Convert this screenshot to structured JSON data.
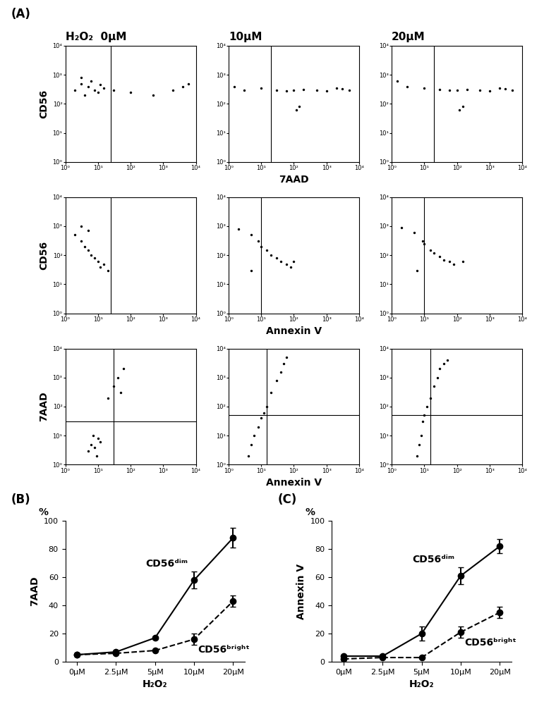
{
  "chart_data": [
    {
      "type": "scatter",
      "panel": "(A)",
      "title": "H₂O₂  0μM",
      "ylabel": "CD56",
      "log": true,
      "color": "#000000",
      "marker": "o",
      "x": [
        2,
        3,
        4,
        5,
        6,
        8,
        10,
        12,
        15,
        3,
        30,
        100,
        500,
        2000,
        4000,
        6000
      ],
      "y": [
        300,
        500,
        200,
        400,
        600,
        300,
        250,
        450,
        350,
        800,
        300,
        250,
        200,
        300,
        400,
        500
      ],
      "gate_x": 25,
      "xlim": [
        1,
        10000
      ],
      "ylim": [
        1,
        10000
      ],
      "xticks": [
        {
          "value": 1,
          "label": "10⁰"
        },
        {
          "value": 10,
          "label": "10¹"
        },
        {
          "value": 100,
          "label": "10²"
        },
        {
          "value": 1000,
          "label": "10³"
        },
        {
          "value": 10000,
          "label": "10⁴"
        }
      ],
      "yticks": [
        {
          "value": 1,
          "label": "10⁰"
        },
        {
          "value": 10,
          "label": "10¹"
        },
        {
          "value": 100,
          "label": "10²"
        },
        {
          "value": 1000,
          "label": "10³"
        },
        {
          "value": 10000,
          "label": "10⁴"
        }
      ]
    },
    {
      "type": "scatter",
      "title": "10μM",
      "xlabel": "7AAD",
      "log": true,
      "color": "#000000",
      "marker": "o",
      "x": [
        1.5,
        3,
        10,
        30,
        60,
        100,
        200,
        500,
        1000,
        2000,
        3000,
        5000,
        120,
        150
      ],
      "y": [
        400,
        300,
        350,
        300,
        280,
        300,
        320,
        300,
        280,
        350,
        330,
        300,
        60,
        80
      ],
      "gate_x": 20,
      "xlim": [
        1,
        10000
      ],
      "ylim": [
        1,
        10000
      ],
      "xticks": [
        {
          "value": 1,
          "label": "10⁰"
        },
        {
          "value": 10,
          "label": "10¹"
        },
        {
          "value": 100,
          "label": "10²"
        },
        {
          "value": 1000,
          "label": "10³"
        },
        {
          "value": 10000,
          "label": "10⁴"
        }
      ],
      "yticks": [
        {
          "value": 1,
          "label": "10⁰"
        },
        {
          "value": 10,
          "label": "10¹"
        },
        {
          "value": 100,
          "label": "10²"
        },
        {
          "value": 1000,
          "label": "10³"
        },
        {
          "value": 10000,
          "label": "10⁴"
        }
      ]
    },
    {
      "type": "scatter",
      "title": "20μM",
      "log": true,
      "color": "#000000",
      "marker": "o",
      "x": [
        1.5,
        3,
        10,
        30,
        60,
        100,
        200,
        500,
        1000,
        2000,
        3000,
        5000,
        120,
        150
      ],
      "y": [
        600,
        400,
        350,
        320,
        300,
        300,
        320,
        300,
        280,
        350,
        330,
        300,
        60,
        80
      ],
      "gate_x": 20,
      "xlim": [
        1,
        10000
      ],
      "ylim": [
        1,
        10000
      ],
      "xticks": [
        {
          "value": 1,
          "label": "10⁰"
        },
        {
          "value": 10,
          "label": "10¹"
        },
        {
          "value": 100,
          "label": "10²"
        },
        {
          "value": 1000,
          "label": "10³"
        },
        {
          "value": 10000,
          "label": "10⁴"
        }
      ],
      "yticks": [
        {
          "value": 1,
          "label": "10⁰"
        },
        {
          "value": 10,
          "label": "10¹"
        },
        {
          "value": 100,
          "label": "10²"
        },
        {
          "value": 1000,
          "label": "10³"
        },
        {
          "value": 10000,
          "label": "10⁴"
        }
      ]
    },
    {
      "type": "scatter",
      "ylabel": "CD56",
      "log": true,
      "color": "#000000",
      "marker": "o",
      "x": [
        2,
        3,
        4,
        5,
        6,
        8,
        10,
        12,
        15,
        20,
        3,
        5
      ],
      "y": [
        500,
        300,
        200,
        150,
        100,
        80,
        60,
        40,
        50,
        30,
        1000,
        700
      ],
      "gate_x": 25,
      "xlim": [
        1,
        10000
      ],
      "ylim": [
        1,
        10000
      ],
      "xticks": [
        {
          "value": 1,
          "label": "10⁰"
        },
        {
          "value": 10,
          "label": "10¹"
        },
        {
          "value": 100,
          "label": "10²"
        },
        {
          "value": 1000,
          "label": "10³"
        },
        {
          "value": 10000,
          "label": "10⁴"
        }
      ],
      "yticks": [
        {
          "value": 1,
          "label": "10⁰"
        },
        {
          "value": 10,
          "label": "10¹"
        },
        {
          "value": 100,
          "label": "10²"
        },
        {
          "value": 1000,
          "label": "10³"
        },
        {
          "value": 10000,
          "label": "10⁴"
        }
      ]
    },
    {
      "type": "scatter",
      "xlabel": "Annexin V",
      "log": true,
      "color": "#000000",
      "marker": "o",
      "x": [
        2,
        5,
        10,
        15,
        20,
        30,
        40,
        60,
        80,
        100,
        5,
        8
      ],
      "y": [
        800,
        500,
        200,
        150,
        100,
        80,
        60,
        50,
        40,
        60,
        30,
        300
      ],
      "gate_x": 10,
      "xlim": [
        1,
        10000
      ],
      "ylim": [
        1,
        10000
      ],
      "xticks": [
        {
          "value": 1,
          "label": "10⁰"
        },
        {
          "value": 10,
          "label": "10¹"
        },
        {
          "value": 100,
          "label": "10²"
        },
        {
          "value": 1000,
          "label": "10³"
        },
        {
          "value": 10000,
          "label": "10⁴"
        }
      ],
      "yticks": [
        {
          "value": 1,
          "label": "10⁰"
        },
        {
          "value": 10,
          "label": "10¹"
        },
        {
          "value": 100,
          "label": "10²"
        },
        {
          "value": 1000,
          "label": "10³"
        },
        {
          "value": 10000,
          "label": "10⁴"
        }
      ]
    },
    {
      "type": "scatter",
      "log": true,
      "color": "#000000",
      "marker": "o",
      "x": [
        2,
        5,
        10,
        15,
        20,
        30,
        40,
        60,
        80,
        150,
        6,
        9
      ],
      "y": [
        900,
        600,
        250,
        150,
        120,
        90,
        70,
        60,
        50,
        60,
        30,
        300
      ],
      "gate_x": 10,
      "xlim": [
        1,
        10000
      ],
      "ylim": [
        1,
        10000
      ],
      "xticks": [
        {
          "value": 1,
          "label": "10⁰"
        },
        {
          "value": 10,
          "label": "10¹"
        },
        {
          "value": 100,
          "label": "10²"
        },
        {
          "value": 1000,
          "label": "10³"
        },
        {
          "value": 10000,
          "label": "10⁴"
        }
      ],
      "yticks": [
        {
          "value": 1,
          "label": "10⁰"
        },
        {
          "value": 10,
          "label": "10¹"
        },
        {
          "value": 100,
          "label": "10²"
        },
        {
          "value": 1000,
          "label": "10³"
        },
        {
          "value": 10000,
          "label": "10⁴"
        }
      ]
    },
    {
      "type": "scatter",
      "ylabel": "7AAD",
      "log": true,
      "color": "#000000",
      "marker": "o",
      "x": [
        5,
        6,
        8,
        10,
        7,
        9,
        12,
        20,
        30,
        40,
        60,
        50
      ],
      "y": [
        3,
        5,
        4,
        8,
        10,
        2,
        6,
        200,
        500,
        1000,
        2000,
        300
      ],
      "gate_x": 30,
      "gate_y": 30,
      "xlim": [
        1,
        10000
      ],
      "ylim": [
        1,
        10000
      ],
      "xticks": [
        {
          "value": 1,
          "label": "10⁰"
        },
        {
          "value": 10,
          "label": "10¹"
        },
        {
          "value": 100,
          "label": "10²"
        },
        {
          "value": 1000,
          "label": "10³"
        },
        {
          "value": 10000,
          "label": "10⁴"
        }
      ],
      "yticks": [
        {
          "value": 1,
          "label": "10⁰"
        },
        {
          "value": 10,
          "label": "10¹"
        },
        {
          "value": 100,
          "label": "10²"
        },
        {
          "value": 1000,
          "label": "10³"
        },
        {
          "value": 10000,
          "label": "10⁴"
        }
      ]
    },
    {
      "type": "scatter",
      "xlabel": "Annexin V",
      "log": true,
      "color": "#000000",
      "marker": "o",
      "x": [
        4,
        5,
        6,
        8,
        10,
        12,
        15,
        20,
        30,
        40,
        50,
        60
      ],
      "y": [
        2,
        5,
        10,
        20,
        40,
        60,
        100,
        300,
        800,
        1500,
        3000,
        5000
      ],
      "gate_x": 15,
      "gate_y": 50,
      "xlim": [
        1,
        10000
      ],
      "ylim": [
        1,
        10000
      ],
      "xticks": [
        {
          "value": 1,
          "label": "10⁰"
        },
        {
          "value": 10,
          "label": "10¹"
        },
        {
          "value": 100,
          "label": "10²"
        },
        {
          "value": 1000,
          "label": "10³"
        },
        {
          "value": 10000,
          "label": "10⁴"
        }
      ],
      "yticks": [
        {
          "value": 1,
          "label": "10⁰"
        },
        {
          "value": 10,
          "label": "10¹"
        },
        {
          "value": 100,
          "label": "10²"
        },
        {
          "value": 1000,
          "label": "10³"
        },
        {
          "value": 10000,
          "label": "10⁴"
        }
      ]
    },
    {
      "type": "scatter",
      "log": true,
      "color": "#000000",
      "marker": "o",
      "x": [
        6,
        7,
        8,
        9,
        10,
        12,
        15,
        20,
        25,
        30,
        40,
        50
      ],
      "y": [
        2,
        5,
        10,
        30,
        50,
        100,
        200,
        500,
        1000,
        2000,
        3000,
        4000
      ],
      "gate_x": 15,
      "gate_y": 50,
      "xlim": [
        1,
        10000
      ],
      "ylim": [
        1,
        10000
      ],
      "xticks": [
        {
          "value": 1,
          "label": "10⁰"
        },
        {
          "value": 10,
          "label": "10¹"
        },
        {
          "value": 100,
          "label": "10²"
        },
        {
          "value": 1000,
          "label": "10³"
        },
        {
          "value": 10000,
          "label": "10⁴"
        }
      ],
      "yticks": [
        {
          "value": 1,
          "label": "10⁰"
        },
        {
          "value": 10,
          "label": "10¹"
        },
        {
          "value": 100,
          "label": "10²"
        },
        {
          "value": 1000,
          "label": "10³"
        },
        {
          "value": 10000,
          "label": "10⁴"
        }
      ]
    },
    {
      "type": "line",
      "panel": "(B)",
      "unit": "%",
      "ylabel": "7AAD",
      "xlabel": "H₂O₂",
      "categories": [
        "0μM",
        "2.5μM",
        "5μM",
        "10μM",
        "20μM"
      ],
      "ylim": [
        0,
        100
      ],
      "yticks": [
        0,
        20,
        40,
        60,
        80,
        100
      ],
      "series": [
        {
          "name": "CD56ᵈⁱᵐ",
          "color": "#000000",
          "line_style": "solid",
          "marker": "o",
          "values": [
            5,
            7,
            17,
            58,
            88
          ],
          "errors": [
            0,
            1,
            1,
            6,
            7
          ]
        },
        {
          "name": "CD56ᵇʳⁱᵍʰᵗ",
          "color": "#000000",
          "line_style": "dashed",
          "marker": "o",
          "values": [
            5,
            6,
            8,
            16,
            43
          ],
          "errors": [
            0,
            0,
            0,
            4,
            4
          ]
        }
      ]
    },
    {
      "type": "line",
      "panel": "(C)",
      "unit": "%",
      "ylabel": "Annexin V",
      "xlabel": "H₂O₂",
      "categories": [
        "0μM",
        "2.5μM",
        "5μM",
        "10μM",
        "20μM"
      ],
      "ylim": [
        0,
        100
      ],
      "yticks": [
        0,
        20,
        40,
        60,
        80,
        100
      ],
      "series": [
        {
          "name": "CD56ᵈⁱᵐ",
          "color": "#000000",
          "line_style": "solid",
          "marker": "o",
          "values": [
            4,
            4,
            20,
            61,
            82
          ],
          "errors": [
            0,
            1,
            5,
            6,
            5
          ]
        },
        {
          "name": "CD56ᵇʳⁱᵍʰᵗ",
          "color": "#000000",
          "line_style": "dashed",
          "marker": "o",
          "values": [
            2,
            3,
            3,
            21,
            35
          ],
          "errors": [
            0,
            0,
            0,
            4,
            4
          ]
        }
      ]
    }
  ]
}
